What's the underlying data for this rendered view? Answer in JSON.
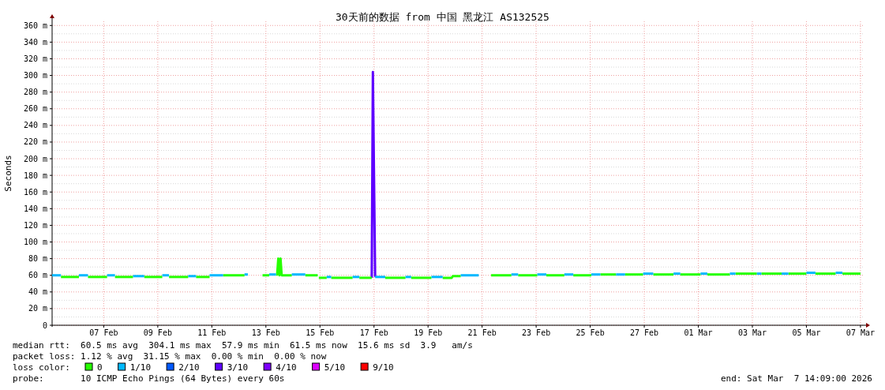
{
  "chart_data": {
    "type": "line",
    "title": "30天前的数据 from 中国 黑龙江 AS132525",
    "ylabel": "Seconds",
    "legend_title": "loss color:",
    "legend": "bottom",
    "grid": true,
    "xlim": [
      "2026-02-05T14:09",
      "2026-03-07T14:09"
    ],
    "xticks": [
      {
        "value": "2026-02-07T12:00",
        "label": "07 Feb"
      },
      {
        "value": "2026-02-09T12:00",
        "label": "09 Feb"
      },
      {
        "value": "2026-02-11T12:00",
        "label": "11 Feb"
      },
      {
        "value": "2026-02-13T12:00",
        "label": "13 Feb"
      },
      {
        "value": "2026-02-15T12:00",
        "label": "15 Feb"
      },
      {
        "value": "2026-02-17T12:00",
        "label": "17 Feb"
      },
      {
        "value": "2026-02-19T12:00",
        "label": "19 Feb"
      },
      {
        "value": "2026-02-21T12:00",
        "label": "21 Feb"
      },
      {
        "value": "2026-02-23T12:00",
        "label": "23 Feb"
      },
      {
        "value": "2026-02-25T12:00",
        "label": "25 Feb"
      },
      {
        "value": "2026-02-27T12:00",
        "label": "27 Feb"
      },
      {
        "value": "2026-03-01T12:00",
        "label": "01 Mar"
      },
      {
        "value": "2026-03-03T12:00",
        "label": "03 Mar"
      },
      {
        "value": "2026-03-05T12:00",
        "label": "05 Mar"
      },
      {
        "value": "2026-03-07T12:00",
        "label": "07 Mar"
      }
    ],
    "ylim": [
      0,
      365
    ],
    "yticks": [
      0,
      {
        "value": 20,
        "label": "20 m"
      },
      {
        "value": 40,
        "label": "40 m"
      },
      {
        "value": 60,
        "label": "60 m"
      },
      {
        "value": 80,
        "label": "80 m"
      },
      {
        "value": 100,
        "label": "100 m"
      },
      {
        "value": 120,
        "label": "120 m"
      },
      {
        "value": 140,
        "label": "140 m"
      },
      {
        "value": 160,
        "label": "160 m"
      },
      {
        "value": 180,
        "label": "180 m"
      },
      {
        "value": 200,
        "label": "200 m"
      },
      {
        "value": 220,
        "label": "220 m"
      },
      {
        "value": 240,
        "label": "240 m"
      },
      {
        "value": 260,
        "label": "260 m"
      },
      {
        "value": 280,
        "label": "280 m"
      },
      {
        "value": 300,
        "label": "300 m"
      },
      {
        "value": 320,
        "label": "320 m"
      },
      {
        "value": 340,
        "label": "340 m"
      },
      {
        "value": 360,
        "label": "360 m"
      }
    ],
    "series": [
      {
        "name": "0",
        "color": "#26ff00",
        "x": [
          "2026-02-05T22:00",
          "2026-02-06T14:00"
        ],
        "values": [
          58,
          58
        ]
      },
      {
        "name": "1/10",
        "color": "#00b8ff",
        "x": [
          "2026-02-05T14:09",
          "2026-02-05T22:00"
        ],
        "values": [
          60,
          60
        ]
      },
      {
        "name": "2/10",
        "color": "#0059ff"
      },
      {
        "name": "3/10",
        "color": "#5e00ff",
        "x": [
          "2026-02-17T10:00",
          "2026-02-17T11:00",
          "2026-02-17T13:00"
        ],
        "values": [
          57,
          304,
          58
        ]
      },
      {
        "name": "4/10",
        "color": "#7e00ff"
      },
      {
        "name": "5/10",
        "color": "#dd00ff"
      },
      {
        "name": "9/10",
        "color": "#ff0000"
      },
      {
        "color": "#26ff00",
        "x": [
          "2026-02-06T22:00",
          "2026-02-07T15:00"
        ],
        "values": [
          58,
          58
        ]
      },
      {
        "color": "#26ff00",
        "x": [
          "2026-02-07T22:00",
          "2026-02-08T14:00"
        ],
        "values": [
          58,
          58
        ]
      },
      {
        "color": "#26ff00",
        "x": [
          "2026-02-09T00:00",
          "2026-02-09T16:00"
        ],
        "values": [
          58,
          58
        ]
      },
      {
        "color": "#26ff00",
        "x": [
          "2026-02-09T22:00",
          "2026-02-10T15:00"
        ],
        "values": [
          58,
          58
        ]
      },
      {
        "color": "#26ff00",
        "x": [
          "2026-02-10T22:00",
          "2026-02-11T10:00"
        ],
        "values": [
          58,
          58
        ]
      },
      {
        "color": "#26ff00",
        "x": [
          "2026-02-11T22:00",
          "2026-02-12T17:00"
        ],
        "values": [
          60,
          60
        ]
      },
      {
        "color": "#26ff00",
        "x": [
          "2026-02-13T09:00",
          "2026-02-13T15:00"
        ],
        "values": [
          60,
          60
        ]
      },
      {
        "color": "#26ff00",
        "x": [
          "2026-02-13T21:00",
          "2026-02-13T22:00",
          "2026-02-13T23:00",
          "2026-02-14T00:00",
          "2026-02-14T01:00",
          "2026-02-14T02:00",
          "2026-02-14T11:00"
        ],
        "values": [
          61,
          61,
          80,
          60,
          80,
          60,
          60
        ]
      },
      {
        "color": "#26ff00",
        "x": [
          "2026-02-14T23:00",
          "2026-02-15T10:00"
        ],
        "values": [
          60,
          60
        ]
      },
      {
        "color": "#26ff00",
        "x": [
          "2026-02-15T11:00",
          "2026-02-15T18:00"
        ],
        "values": [
          57,
          57
        ]
      },
      {
        "color": "#26ff00",
        "x": [
          "2026-02-15T22:00",
          "2026-02-16T17:00"
        ],
        "values": [
          57,
          57
        ]
      },
      {
        "color": "#26ff00",
        "x": [
          "2026-02-16T23:00",
          "2026-02-17T10:00"
        ],
        "values": [
          57,
          57
        ]
      },
      {
        "color": "#26ff00",
        "x": [
          "2026-02-17T22:00",
          "2026-02-18T16:00"
        ],
        "values": [
          57,
          57
        ]
      },
      {
        "color": "#26ff00",
        "x": [
          "2026-02-18T21:00",
          "2026-02-19T15:00"
        ],
        "values": [
          57,
          57
        ]
      },
      {
        "color": "#26ff00",
        "x": [
          "2026-02-20T01:00",
          "2026-02-20T09:00",
          "2026-02-20T10:00",
          "2026-02-20T17:00"
        ],
        "values": [
          57,
          57,
          59,
          59
        ]
      },
      {
        "color": "#26ff00",
        "x": [
          "2026-02-21T20:00",
          "2026-02-22T14:00"
        ],
        "values": [
          60,
          60
        ]
      },
      {
        "color": "#26ff00",
        "x": [
          "2026-02-22T20:00",
          "2026-02-23T13:00"
        ],
        "values": [
          60,
          60
        ]
      },
      {
        "color": "#26ff00",
        "x": [
          "2026-02-23T21:00",
          "2026-02-24T13:00"
        ],
        "values": [
          60,
          60
        ]
      },
      {
        "color": "#26ff00",
        "x": [
          "2026-02-24T21:00",
          "2026-02-25T13:00"
        ],
        "values": [
          60,
          60
        ]
      },
      {
        "color": "#26ff00",
        "x": [
          "2026-02-25T21:00",
          "2026-02-26T11:00"
        ],
        "values": [
          61,
          61
        ]
      },
      {
        "color": "#26ff00",
        "x": [
          "2026-02-26T19:00",
          "2026-02-27T11:00"
        ],
        "values": [
          61,
          61
        ]
      },
      {
        "color": "#26ff00",
        "x": [
          "2026-02-27T20:00",
          "2026-02-28T14:00"
        ],
        "values": [
          61,
          61
        ]
      },
      {
        "color": "#26ff00",
        "x": [
          "2026-02-28T20:00",
          "2026-03-01T14:00"
        ],
        "values": [
          61,
          61
        ]
      },
      {
        "color": "#26ff00",
        "x": [
          "2026-03-01T20:00",
          "2026-03-02T16:00"
        ],
        "values": [
          61,
          61
        ]
      },
      {
        "color": "#26ff00",
        "x": [
          "2026-03-02T21:00",
          "2026-03-03T16:00"
        ],
        "values": [
          62,
          62
        ]
      },
      {
        "color": "#26ff00",
        "x": [
          "2026-03-03T20:00",
          "2026-03-04T14:00"
        ],
        "values": [
          62,
          62
        ]
      },
      {
        "color": "#26ff00",
        "x": [
          "2026-03-04T20:00",
          "2026-03-05T12:00"
        ],
        "values": [
          62,
          62
        ]
      },
      {
        "color": "#26ff00",
        "x": [
          "2026-03-05T20:00",
          "2026-03-06T14:00"
        ],
        "values": [
          62,
          62
        ]
      },
      {
        "color": "#26ff00",
        "x": [
          "2026-03-06T20:00",
          "2026-03-07T12:00"
        ],
        "values": [
          62,
          62
        ]
      },
      {
        "color": "#00b8ff",
        "x": [
          "2026-02-06T14:00",
          "2026-02-06T22:00"
        ],
        "values": [
          60,
          60
        ]
      },
      {
        "color": "#00b8ff",
        "x": [
          "2026-02-07T15:00",
          "2026-02-07T22:00"
        ],
        "values": [
          60,
          60
        ]
      },
      {
        "color": "#00b8ff",
        "x": [
          "2026-02-08T14:00",
          "2026-02-09T00:00"
        ],
        "values": [
          59,
          59
        ]
      },
      {
        "color": "#00b8ff",
        "x": [
          "2026-02-09T16:00",
          "2026-02-09T22:00"
        ],
        "values": [
          60,
          60
        ]
      },
      {
        "color": "#00b8ff",
        "x": [
          "2026-02-10T15:00",
          "2026-02-10T22:00"
        ],
        "values": [
          59,
          59
        ]
      },
      {
        "color": "#00b8ff",
        "x": [
          "2026-02-11T10:00",
          "2026-02-11T22:00"
        ],
        "values": [
          60,
          60
        ]
      },
      {
        "color": "#00b8ff",
        "x": [
          "2026-02-12T17:00",
          "2026-02-12T20:00"
        ],
        "values": [
          61,
          61
        ]
      },
      {
        "color": "#00b8ff",
        "x": [
          "2026-02-13T15:00",
          "2026-02-13T21:00"
        ],
        "values": [
          61,
          61
        ]
      },
      {
        "color": "#00b8ff",
        "x": [
          "2026-02-14T11:00",
          "2026-02-14T23:00"
        ],
        "values": [
          61,
          61
        ]
      },
      {
        "color": "#00b8ff",
        "x": [
          "2026-02-15T18:00",
          "2026-02-15T22:00"
        ],
        "values": [
          58,
          58
        ]
      },
      {
        "color": "#00b8ff",
        "x": [
          "2026-02-16T17:00",
          "2026-02-16T23:00"
        ],
        "values": [
          58,
          58
        ]
      },
      {
        "color": "#00b8ff",
        "x": [
          "2026-02-17T13:00",
          "2026-02-17T22:00"
        ],
        "values": [
          58,
          58
        ]
      },
      {
        "color": "#00b8ff",
        "x": [
          "2026-02-18T16:00",
          "2026-02-18T21:00"
        ],
        "values": [
          58,
          58
        ]
      },
      {
        "color": "#00b8ff",
        "x": [
          "2026-02-19T15:00",
          "2026-02-20T01:00"
        ],
        "values": [
          58,
          58
        ]
      },
      {
        "color": "#00b8ff",
        "x": [
          "2026-02-20T17:00",
          "2026-02-21T09:00"
        ],
        "values": [
          60,
          60
        ]
      },
      {
        "color": "#00b8ff",
        "x": [
          "2026-02-22T14:00",
          "2026-02-22T20:00"
        ],
        "values": [
          61,
          61
        ]
      },
      {
        "color": "#00b8ff",
        "x": [
          "2026-02-23T13:00",
          "2026-02-23T21:00"
        ],
        "values": [
          61,
          61
        ]
      },
      {
        "color": "#00b8ff",
        "x": [
          "2026-02-24T13:00",
          "2026-02-24T21:00"
        ],
        "values": [
          61,
          61
        ]
      },
      {
        "color": "#00b8ff",
        "x": [
          "2026-02-25T13:00",
          "2026-02-25T21:00"
        ],
        "values": [
          61,
          61
        ]
      },
      {
        "color": "#00b8ff",
        "x": [
          "2026-02-26T11:00",
          "2026-02-26T19:00"
        ],
        "values": [
          61,
          61
        ]
      },
      {
        "color": "#00b8ff",
        "x": [
          "2026-02-27T11:00",
          "2026-02-27T20:00"
        ],
        "values": [
          62,
          62
        ]
      },
      {
        "color": "#00b8ff",
        "x": [
          "2026-02-28T14:00",
          "2026-02-28T20:00"
        ],
        "values": [
          62,
          62
        ]
      },
      {
        "color": "#00b8ff",
        "x": [
          "2026-03-01T14:00",
          "2026-03-01T20:00"
        ],
        "values": [
          62,
          62
        ]
      },
      {
        "color": "#00b8ff",
        "x": [
          "2026-03-02T16:00",
          "2026-03-02T21:00"
        ],
        "values": [
          62,
          62
        ]
      },
      {
        "color": "#00b8ff",
        "x": [
          "2026-03-03T16:00",
          "2026-03-03T20:00"
        ],
        "values": [
          62,
          62
        ]
      },
      {
        "color": "#00b8ff",
        "x": [
          "2026-03-04T14:00",
          "2026-03-04T20:00"
        ],
        "values": [
          62,
          62
        ]
      },
      {
        "color": "#00b8ff",
        "x": [
          "2026-03-05T12:00",
          "2026-03-05T20:00"
        ],
        "values": [
          63,
          63
        ]
      },
      {
        "color": "#00b8ff",
        "x": [
          "2026-03-06T14:00",
          "2026-03-06T20:00"
        ],
        "values": [
          63,
          63
        ]
      }
    ],
    "annotations": [
      "median rtt:  60.5 ms avg  304.1 ms max  57.9 ms min  61.5 ms now  15.6 ms sd  3.9   am/s",
      "packet loss: 1.12 % avg  31.15 % max  0.00 % min  0.00 % now",
      "probe:       10 ICMP Echo Pings (64 Bytes) every 60s",
      "end: Sat Mar  7 14:09:00 2026"
    ]
  }
}
